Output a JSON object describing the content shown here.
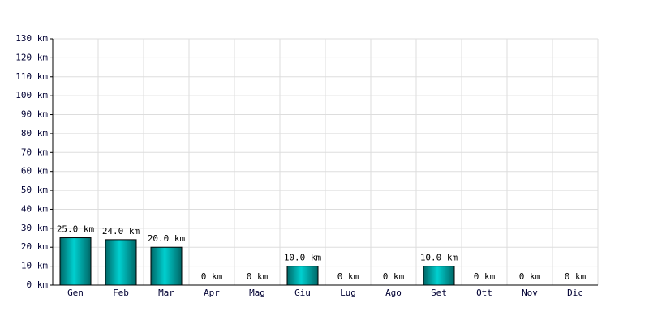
{
  "chart_data": {
    "type": "bar",
    "categories": [
      "Gen",
      "Feb",
      "Mar",
      "Apr",
      "Mag",
      "Giu",
      "Lug",
      "Ago",
      "Set",
      "Ott",
      "Nov",
      "Dic"
    ],
    "values": [
      25,
      24,
      20,
      0,
      0,
      10,
      0,
      0,
      10,
      0,
      0,
      0
    ],
    "value_labels": [
      "25.0 km",
      "24.0 km",
      "20.0 km",
      "0 km",
      "0 km",
      "10.0 km",
      "0 km",
      "0 km",
      "10.0 km",
      "0 km",
      "0 km",
      "0 km"
    ],
    "color": "#00d0d0",
    "ylim": [
      0,
      130
    ],
    "yticks": [
      {
        "value": 0,
        "label": "0 km"
      },
      {
        "value": 10,
        "label": "10 km"
      },
      {
        "value": 20,
        "label": "20 km"
      },
      {
        "value": 30,
        "label": "30 km"
      },
      {
        "value": 40,
        "label": "40 km"
      },
      {
        "value": 50,
        "label": "50 km"
      },
      {
        "value": 60,
        "label": "60 km"
      },
      {
        "value": 70,
        "label": "70 km"
      },
      {
        "value": 80,
        "label": "80 km"
      },
      {
        "value": 90,
        "label": "90 km"
      },
      {
        "value": 100,
        "label": "100 km"
      },
      {
        "value": 110,
        "label": "110 km"
      },
      {
        "value": 120,
        "label": "120 km"
      },
      {
        "value": 130,
        "label": "130 km"
      }
    ],
    "grid": true
  }
}
